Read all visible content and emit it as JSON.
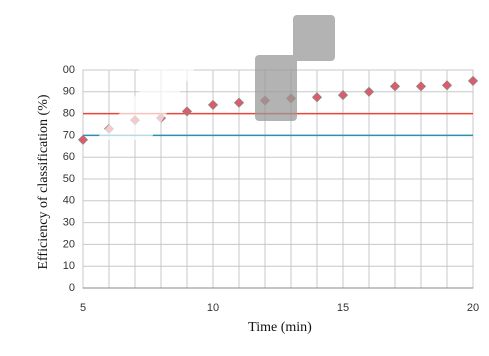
{
  "chart_data": {
    "type": "scatter",
    "x_label": "Time (min)",
    "y_label": "Efficiency of classification (%)",
    "series": [
      {
        "x": [
          5,
          6,
          7,
          8,
          9,
          10,
          11,
          12,
          13,
          14,
          15,
          16,
          17,
          18,
          19,
          20
        ],
        "values": [
          68,
          73,
          77,
          78,
          81,
          84,
          85,
          86,
          87,
          87.5,
          88.5,
          90,
          92.5,
          92.5,
          93,
          95
        ],
        "color": "#e05a6a"
      }
    ],
    "hlines": [
      {
        "value": 80,
        "color": "#e8463c"
      },
      {
        "value": 70,
        "color": "#2a8fb0"
      }
    ],
    "xlim": [
      5,
      20
    ],
    "xticks": [
      5,
      10,
      15,
      20
    ],
    "minor_xticks": [
      6,
      7,
      8,
      9,
      11,
      12,
      13,
      14,
      16,
      17,
      18,
      19
    ],
    "ylim": [
      0,
      100
    ],
    "yticks": [
      0,
      10,
      20,
      30,
      40,
      50,
      60,
      70,
      80,
      90,
      {
        "value": 100,
        "label": "00"
      }
    ],
    "grid": true
  }
}
